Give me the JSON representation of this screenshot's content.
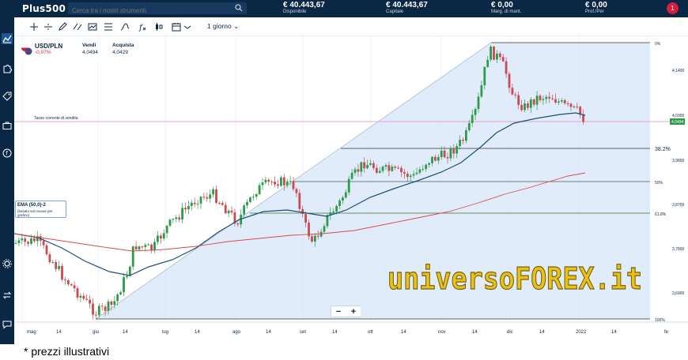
{
  "app": {
    "logo": "Plus500"
  },
  "search": {
    "placeholder": "Cerca tra i nostri strumenti"
  },
  "stats": [
    {
      "value": "€ 40.443,67",
      "label": "Disponibile"
    },
    {
      "value": "€ 40.443,67",
      "label": "Capitale"
    },
    {
      "value": "€ 0,00",
      "label": "Marg. di mant."
    },
    {
      "value": "€ 0,00",
      "label": "Prof./Per"
    }
  ],
  "user": {
    "notifications": "1"
  },
  "toolbar": {
    "period": "1 giorno"
  },
  "instrument": {
    "symbol": "USD/PLN",
    "change": "-0,07%",
    "sell_label": "Vendi",
    "sell_price": "4,0494",
    "buy_label": "Acquista",
    "buy_price": "4,0429"
  },
  "chart": {
    "current_rate_label": "Tasso corrente di vendita",
    "current_price_tag": "4,0494",
    "price_ticks": [
      "4,1400",
      "4,0300",
      "3,9800",
      "3,8700",
      "3,7800",
      "3,6900"
    ],
    "fib_levels": [
      "0%",
      "38.2%",
      "50%",
      "61.8%",
      "100%"
    ],
    "x_labels": [
      "mag",
      "14",
      "giu",
      "14",
      "lug",
      "14",
      "ago",
      "14",
      "set",
      "14",
      "ott",
      "14",
      "nov",
      "14",
      "dic",
      "14",
      "2022",
      "14",
      "fe"
    ],
    "colors": {
      "ema": "#1b4f7a",
      "slow_ma": "#d94a4a",
      "current_line": "#e8a2d6",
      "fib_fill": "#d6e6f8"
    }
  },
  "ema_panel": {
    "title": "EMA (50,0)-2",
    "subtitle": "(basato sul mouse per grafico)"
  },
  "zoom": {
    "minus": "−",
    "plus": "+"
  },
  "watermark": {
    "text": "universoFOREX.it"
  },
  "footnote": "* prezzi illustrativi"
}
